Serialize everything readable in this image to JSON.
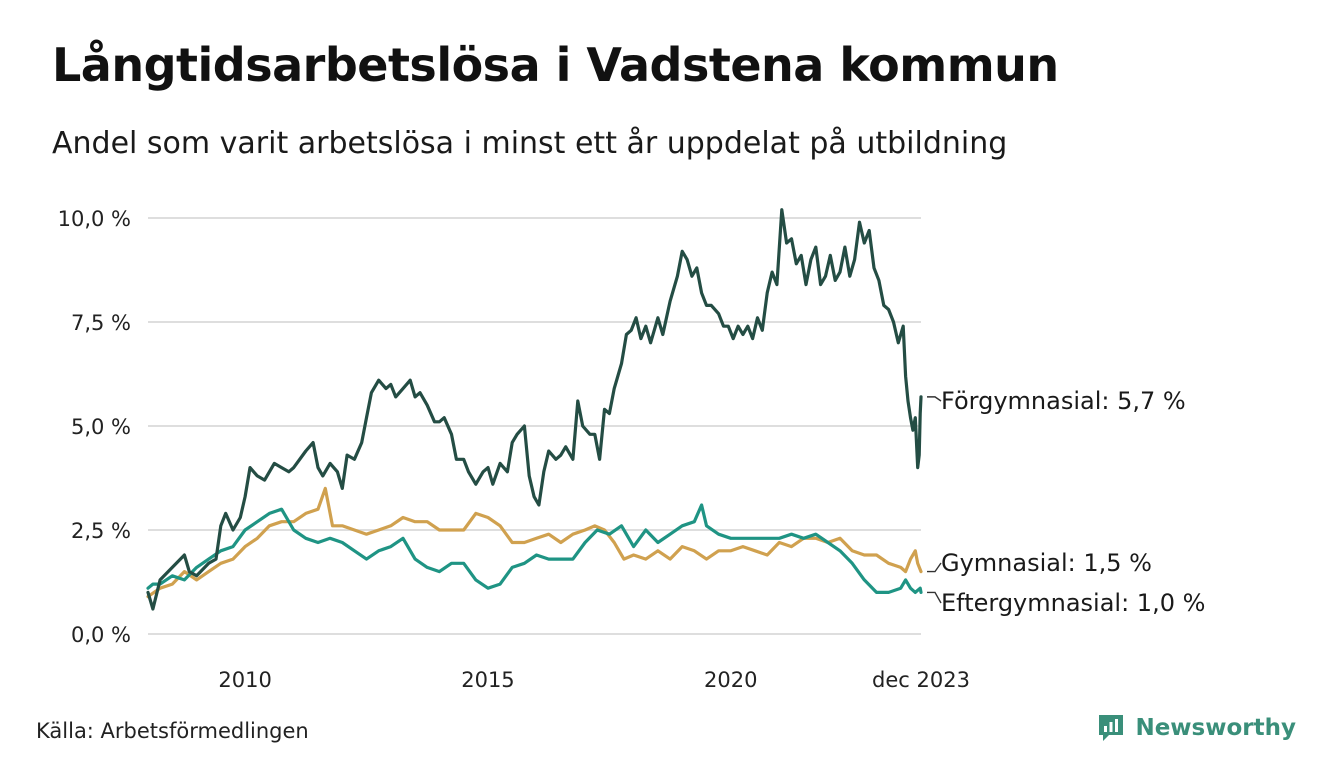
{
  "header": {
    "title": "Långtidsarbetslösa i Vadstena kommun",
    "subtitle": "Andel som varit arbetslösa i minst ett år uppdelat på utbildning"
  },
  "footer": {
    "source": "Källa: Arbetsförmedlingen",
    "brand": "Newsworthy",
    "brand_icon": "newsworthy-logo-icon"
  },
  "chart_data": {
    "type": "line",
    "title": "Långtidsarbetslösa i Vadstena kommun",
    "subtitle": "Andel som varit arbetslösa i minst ett år uppdelat på utbildning",
    "xlabel": "",
    "ylabel": "",
    "xlim": [
      2008.0,
      2023.917
    ],
    "ylim": [
      0,
      10
    ],
    "x_ticks": [
      {
        "value": 2010,
        "label": "2010"
      },
      {
        "value": 2015,
        "label": "2015"
      },
      {
        "value": 2020,
        "label": "2020"
      },
      {
        "value": 2023.917,
        "label": "dec 2023"
      }
    ],
    "y_ticks": [
      {
        "value": 0,
        "label": "0,0 %"
      },
      {
        "value": 2.5,
        "label": "2,5 %"
      },
      {
        "value": 5,
        "label": "5,0 %"
      },
      {
        "value": 7.5,
        "label": "7,5 %"
      },
      {
        "value": 10,
        "label": "10,0 %"
      }
    ],
    "grid": "horizontal",
    "series": [
      {
        "name": "Förgymnasial",
        "color": "#244d44",
        "end_label": "Förgymnasial: 5,7 %",
        "points": [
          [
            2008.0,
            1.0
          ],
          [
            2008.1,
            0.6
          ],
          [
            2008.25,
            1.3
          ],
          [
            2008.5,
            1.6
          ],
          [
            2008.75,
            1.9
          ],
          [
            2008.85,
            1.5
          ],
          [
            2009.0,
            1.4
          ],
          [
            2009.25,
            1.7
          ],
          [
            2009.4,
            1.8
          ],
          [
            2009.5,
            2.6
          ],
          [
            2009.6,
            2.9
          ],
          [
            2009.75,
            2.5
          ],
          [
            2009.9,
            2.8
          ],
          [
            2010.0,
            3.3
          ],
          [
            2010.1,
            4.0
          ],
          [
            2010.25,
            3.8
          ],
          [
            2010.4,
            3.7
          ],
          [
            2010.6,
            4.1
          ],
          [
            2010.75,
            4.0
          ],
          [
            2010.9,
            3.9
          ],
          [
            2011.0,
            4.0
          ],
          [
            2011.25,
            4.4
          ],
          [
            2011.4,
            4.6
          ],
          [
            2011.5,
            4.0
          ],
          [
            2011.6,
            3.8
          ],
          [
            2011.75,
            4.1
          ],
          [
            2011.9,
            3.9
          ],
          [
            2012.0,
            3.5
          ],
          [
            2012.1,
            4.3
          ],
          [
            2012.25,
            4.2
          ],
          [
            2012.4,
            4.6
          ],
          [
            2012.5,
            5.2
          ],
          [
            2012.6,
            5.8
          ],
          [
            2012.75,
            6.1
          ],
          [
            2012.9,
            5.9
          ],
          [
            2013.0,
            6.0
          ],
          [
            2013.1,
            5.7
          ],
          [
            2013.25,
            5.9
          ],
          [
            2013.4,
            6.1
          ],
          [
            2013.5,
            5.7
          ],
          [
            2013.6,
            5.8
          ],
          [
            2013.75,
            5.5
          ],
          [
            2013.9,
            5.1
          ],
          [
            2014.0,
            5.1
          ],
          [
            2014.1,
            5.2
          ],
          [
            2014.25,
            4.8
          ],
          [
            2014.35,
            4.2
          ],
          [
            2014.5,
            4.2
          ],
          [
            2014.6,
            3.9
          ],
          [
            2014.75,
            3.6
          ],
          [
            2014.9,
            3.9
          ],
          [
            2015.0,
            4.0
          ],
          [
            2015.1,
            3.6
          ],
          [
            2015.25,
            4.1
          ],
          [
            2015.4,
            3.9
          ],
          [
            2015.5,
            4.6
          ],
          [
            2015.6,
            4.8
          ],
          [
            2015.75,
            5.0
          ],
          [
            2015.85,
            3.8
          ],
          [
            2015.95,
            3.3
          ],
          [
            2016.05,
            3.1
          ],
          [
            2016.15,
            3.9
          ],
          [
            2016.25,
            4.4
          ],
          [
            2016.4,
            4.2
          ],
          [
            2016.5,
            4.3
          ],
          [
            2016.6,
            4.5
          ],
          [
            2016.75,
            4.2
          ],
          [
            2016.85,
            5.6
          ],
          [
            2016.95,
            5.0
          ],
          [
            2017.1,
            4.8
          ],
          [
            2017.2,
            4.8
          ],
          [
            2017.3,
            4.2
          ],
          [
            2017.4,
            5.4
          ],
          [
            2017.5,
            5.3
          ],
          [
            2017.6,
            5.9
          ],
          [
            2017.75,
            6.5
          ],
          [
            2017.85,
            7.2
          ],
          [
            2017.95,
            7.3
          ],
          [
            2018.05,
            7.6
          ],
          [
            2018.15,
            7.1
          ],
          [
            2018.25,
            7.4
          ],
          [
            2018.35,
            7.0
          ],
          [
            2018.5,
            7.6
          ],
          [
            2018.6,
            7.2
          ],
          [
            2018.75,
            8.0
          ],
          [
            2018.9,
            8.6
          ],
          [
            2019.0,
            9.2
          ],
          [
            2019.1,
            9.0
          ],
          [
            2019.2,
            8.6
          ],
          [
            2019.3,
            8.8
          ],
          [
            2019.4,
            8.2
          ],
          [
            2019.5,
            7.9
          ],
          [
            2019.6,
            7.9
          ],
          [
            2019.75,
            7.7
          ],
          [
            2019.85,
            7.4
          ],
          [
            2019.95,
            7.4
          ],
          [
            2020.05,
            7.1
          ],
          [
            2020.15,
            7.4
          ],
          [
            2020.25,
            7.2
          ],
          [
            2020.35,
            7.4
          ],
          [
            2020.45,
            7.1
          ],
          [
            2020.55,
            7.6
          ],
          [
            2020.65,
            7.3
          ],
          [
            2020.75,
            8.2
          ],
          [
            2020.85,
            8.7
          ],
          [
            2020.95,
            8.4
          ],
          [
            2021.05,
            10.2
          ],
          [
            2021.15,
            9.4
          ],
          [
            2021.25,
            9.5
          ],
          [
            2021.35,
            8.9
          ],
          [
            2021.45,
            9.1
          ],
          [
            2021.55,
            8.4
          ],
          [
            2021.65,
            9.0
          ],
          [
            2021.75,
            9.3
          ],
          [
            2021.85,
            8.4
          ],
          [
            2021.95,
            8.6
          ],
          [
            2022.05,
            9.1
          ],
          [
            2022.15,
            8.5
          ],
          [
            2022.25,
            8.7
          ],
          [
            2022.35,
            9.3
          ],
          [
            2022.45,
            8.6
          ],
          [
            2022.55,
            9.0
          ],
          [
            2022.65,
            9.9
          ],
          [
            2022.75,
            9.4
          ],
          [
            2022.85,
            9.7
          ],
          [
            2022.95,
            8.8
          ],
          [
            2023.05,
            8.5
          ],
          [
            2023.15,
            7.9
          ],
          [
            2023.25,
            7.8
          ],
          [
            2023.35,
            7.5
          ],
          [
            2023.45,
            7.0
          ],
          [
            2023.55,
            7.4
          ],
          [
            2023.6,
            6.2
          ],
          [
            2023.65,
            5.6
          ],
          [
            2023.7,
            5.2
          ],
          [
            2023.75,
            4.9
          ],
          [
            2023.8,
            5.2
          ],
          [
            2023.85,
            4.0
          ],
          [
            2023.88,
            4.3
          ],
          [
            2023.9,
            5.3
          ],
          [
            2023.917,
            5.7
          ]
        ]
      },
      {
        "name": "Gymnasial",
        "color": "#d0a14f",
        "end_label": "Gymnasial: 1,5 %",
        "points": [
          [
            2008.0,
            0.9
          ],
          [
            2008.25,
            1.1
          ],
          [
            2008.5,
            1.2
          ],
          [
            2008.75,
            1.5
          ],
          [
            2009.0,
            1.3
          ],
          [
            2009.25,
            1.5
          ],
          [
            2009.5,
            1.7
          ],
          [
            2009.75,
            1.8
          ],
          [
            2010.0,
            2.1
          ],
          [
            2010.25,
            2.3
          ],
          [
            2010.5,
            2.6
          ],
          [
            2010.75,
            2.7
          ],
          [
            2011.0,
            2.7
          ],
          [
            2011.25,
            2.9
          ],
          [
            2011.5,
            3.0
          ],
          [
            2011.65,
            3.5
          ],
          [
            2011.8,
            2.6
          ],
          [
            2012.0,
            2.6
          ],
          [
            2012.25,
            2.5
          ],
          [
            2012.5,
            2.4
          ],
          [
            2012.75,
            2.5
          ],
          [
            2013.0,
            2.6
          ],
          [
            2013.25,
            2.8
          ],
          [
            2013.5,
            2.7
          ],
          [
            2013.75,
            2.7
          ],
          [
            2014.0,
            2.5
          ],
          [
            2014.25,
            2.5
          ],
          [
            2014.5,
            2.5
          ],
          [
            2014.75,
            2.9
          ],
          [
            2015.0,
            2.8
          ],
          [
            2015.25,
            2.6
          ],
          [
            2015.5,
            2.2
          ],
          [
            2015.75,
            2.2
          ],
          [
            2016.0,
            2.3
          ],
          [
            2016.25,
            2.4
          ],
          [
            2016.5,
            2.2
          ],
          [
            2016.75,
            2.4
          ],
          [
            2017.0,
            2.5
          ],
          [
            2017.2,
            2.6
          ],
          [
            2017.4,
            2.5
          ],
          [
            2017.6,
            2.2
          ],
          [
            2017.8,
            1.8
          ],
          [
            2018.0,
            1.9
          ],
          [
            2018.25,
            1.8
          ],
          [
            2018.5,
            2.0
          ],
          [
            2018.75,
            1.8
          ],
          [
            2019.0,
            2.1
          ],
          [
            2019.25,
            2.0
          ],
          [
            2019.5,
            1.8
          ],
          [
            2019.75,
            2.0
          ],
          [
            2020.0,
            2.0
          ],
          [
            2020.25,
            2.1
          ],
          [
            2020.5,
            2.0
          ],
          [
            2020.75,
            1.9
          ],
          [
            2021.0,
            2.2
          ],
          [
            2021.25,
            2.1
          ],
          [
            2021.5,
            2.3
          ],
          [
            2021.75,
            2.3
          ],
          [
            2022.0,
            2.2
          ],
          [
            2022.25,
            2.3
          ],
          [
            2022.5,
            2.0
          ],
          [
            2022.75,
            1.9
          ],
          [
            2023.0,
            1.9
          ],
          [
            2023.25,
            1.7
          ],
          [
            2023.5,
            1.6
          ],
          [
            2023.6,
            1.5
          ],
          [
            2023.7,
            1.8
          ],
          [
            2023.8,
            2.0
          ],
          [
            2023.85,
            1.7
          ],
          [
            2023.917,
            1.5
          ]
        ]
      },
      {
        "name": "Eftergymnasial",
        "color": "#1f9484",
        "end_label": "Eftergymnasial: 1,0 %",
        "points": [
          [
            2008.0,
            1.1
          ],
          [
            2008.1,
            1.2
          ],
          [
            2008.25,
            1.2
          ],
          [
            2008.5,
            1.4
          ],
          [
            2008.75,
            1.3
          ],
          [
            2009.0,
            1.6
          ],
          [
            2009.25,
            1.8
          ],
          [
            2009.5,
            2.0
          ],
          [
            2009.75,
            2.1
          ],
          [
            2010.0,
            2.5
          ],
          [
            2010.25,
            2.7
          ],
          [
            2010.5,
            2.9
          ],
          [
            2010.75,
            3.0
          ],
          [
            2011.0,
            2.5
          ],
          [
            2011.25,
            2.3
          ],
          [
            2011.5,
            2.2
          ],
          [
            2011.75,
            2.3
          ],
          [
            2012.0,
            2.2
          ],
          [
            2012.25,
            2.0
          ],
          [
            2012.5,
            1.8
          ],
          [
            2012.75,
            2.0
          ],
          [
            2013.0,
            2.1
          ],
          [
            2013.25,
            2.3
          ],
          [
            2013.5,
            1.8
          ],
          [
            2013.75,
            1.6
          ],
          [
            2014.0,
            1.5
          ],
          [
            2014.25,
            1.7
          ],
          [
            2014.5,
            1.7
          ],
          [
            2014.75,
            1.3
          ],
          [
            2015.0,
            1.1
          ],
          [
            2015.25,
            1.2
          ],
          [
            2015.5,
            1.6
          ],
          [
            2015.75,
            1.7
          ],
          [
            2016.0,
            1.9
          ],
          [
            2016.25,
            1.8
          ],
          [
            2016.5,
            1.8
          ],
          [
            2016.75,
            1.8
          ],
          [
            2017.0,
            2.2
          ],
          [
            2017.25,
            2.5
          ],
          [
            2017.5,
            2.4
          ],
          [
            2017.75,
            2.6
          ],
          [
            2018.0,
            2.1
          ],
          [
            2018.25,
            2.5
          ],
          [
            2018.5,
            2.2
          ],
          [
            2018.75,
            2.4
          ],
          [
            2019.0,
            2.6
          ],
          [
            2019.25,
            2.7
          ],
          [
            2019.4,
            3.1
          ],
          [
            2019.5,
            2.6
          ],
          [
            2019.75,
            2.4
          ],
          [
            2020.0,
            2.3
          ],
          [
            2020.25,
            2.3
          ],
          [
            2020.5,
            2.3
          ],
          [
            2020.75,
            2.3
          ],
          [
            2021.0,
            2.3
          ],
          [
            2021.25,
            2.4
          ],
          [
            2021.5,
            2.3
          ],
          [
            2021.75,
            2.4
          ],
          [
            2022.0,
            2.2
          ],
          [
            2022.25,
            2.0
          ],
          [
            2022.5,
            1.7
          ],
          [
            2022.75,
            1.3
          ],
          [
            2023.0,
            1.0
          ],
          [
            2023.25,
            1.0
          ],
          [
            2023.5,
            1.1
          ],
          [
            2023.6,
            1.3
          ],
          [
            2023.7,
            1.1
          ],
          [
            2023.8,
            1.0
          ],
          [
            2023.9,
            1.1
          ],
          [
            2023.917,
            1.0
          ]
        ]
      }
    ]
  }
}
